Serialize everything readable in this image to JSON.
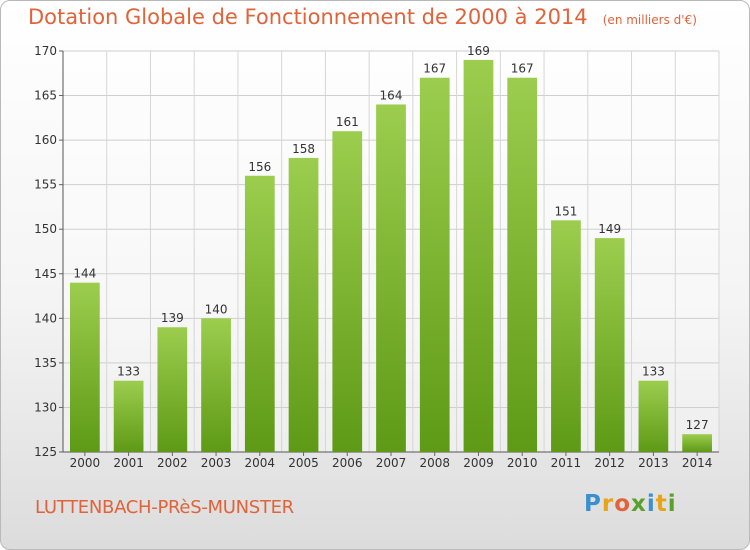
{
  "header": {
    "title": "Dotation Globale de Fonctionnement de 2000 à 2014",
    "unit": "(en milliers d'€)"
  },
  "footer": {
    "commune": "LUTTENBACH-PRèS-MUNSTER",
    "brand_letters": [
      "P",
      "r",
      "o",
      "x",
      "i",
      "t",
      "i"
    ],
    "brand_colors": [
      "#3a8fd1",
      "#e8a317",
      "#e0633a",
      "#5aa02c",
      "#3a8fd1",
      "#e8a317",
      "#5aa02c"
    ]
  },
  "chart_data": {
    "type": "bar",
    "title": "Dotation Globale de Fonctionnement de 2000 à 2014",
    "xlabel": "",
    "ylabel": "",
    "categories": [
      "2000",
      "2001",
      "2002",
      "2003",
      "2004",
      "2005",
      "2006",
      "2007",
      "2008",
      "2009",
      "2010",
      "2011",
      "2012",
      "2013",
      "2014"
    ],
    "values": [
      144,
      133,
      139,
      140,
      156,
      158,
      161,
      164,
      167,
      169,
      167,
      151,
      149,
      133,
      127
    ],
    "ylim": [
      125,
      170
    ],
    "yticks": [
      125,
      130,
      135,
      140,
      145,
      150,
      155,
      160,
      165,
      170
    ],
    "grid": true,
    "bar_color_top": "#9ccd4e",
    "bar_color_bottom": "#5e9a16",
    "title_color": "#e0633a"
  }
}
